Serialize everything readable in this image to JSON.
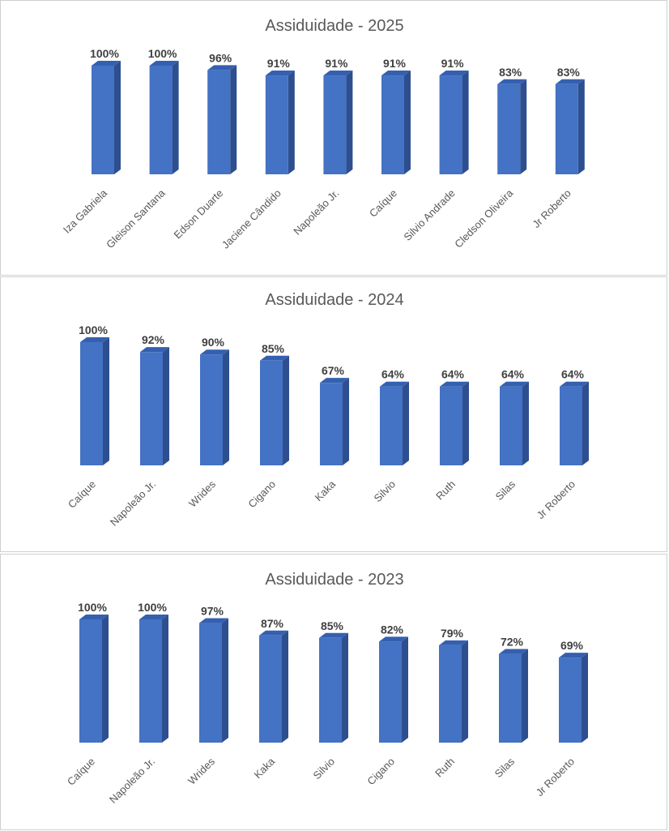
{
  "colors": {
    "bar_front": "#4472C4",
    "bar_side": "#2E4F8F",
    "bar_top": "#3560B0",
    "text_title": "#595959",
    "text_label": "#404040"
  },
  "chart_data": [
    {
      "type": "bar",
      "title": "Assiduidade - 2025",
      "categories": [
        "Iza Gabriela",
        "Gleison Santana",
        "Edson Duarte",
        "Jaciene Cândido",
        "Napoleão Jr.",
        "Caíque",
        "Silvio Andrade",
        "Cledson Oliveira",
        "Jr Roberto"
      ],
      "values": [
        100,
        100,
        96,
        91,
        91,
        91,
        91,
        83,
        83
      ],
      "data_labels": [
        "100%",
        "100%",
        "96%",
        "91%",
        "91%",
        "91%",
        "91%",
        "83%",
        "83%"
      ],
      "ylim": [
        0,
        100
      ],
      "grid": false,
      "legend": "none",
      "style": "3d-column"
    },
    {
      "type": "bar",
      "title": "Assiduidade - 2024",
      "categories": [
        "Caíque",
        "Napoleão Jr.",
        "Wrides",
        "Cigano",
        "Kaka",
        "Silvio",
        "Ruth",
        "Silas",
        "Jr Roberto"
      ],
      "values": [
        100,
        92,
        90,
        85,
        67,
        64,
        64,
        64,
        64
      ],
      "data_labels": [
        "100%",
        "92%",
        "90%",
        "85%",
        "67%",
        "64%",
        "64%",
        "64%",
        "64%"
      ],
      "ylim": [
        0,
        100
      ],
      "grid": false,
      "legend": "none",
      "style": "3d-column"
    },
    {
      "type": "bar",
      "title": "Assiduidade - 2023",
      "categories": [
        "Caíque",
        "Napoleão Jr.",
        "Wrides",
        "Kaka",
        "Silvio",
        "Cigano",
        "Ruth",
        "Silas",
        "Jr Roberto"
      ],
      "values": [
        100,
        100,
        97,
        87,
        85,
        82,
        79,
        72,
        69
      ],
      "data_labels": [
        "100%",
        "100%",
        "97%",
        "87%",
        "85%",
        "82%",
        "79%",
        "72%",
        "69%"
      ],
      "ylim": [
        0,
        100
      ],
      "grid": false,
      "legend": "none",
      "style": "3d-column"
    }
  ]
}
